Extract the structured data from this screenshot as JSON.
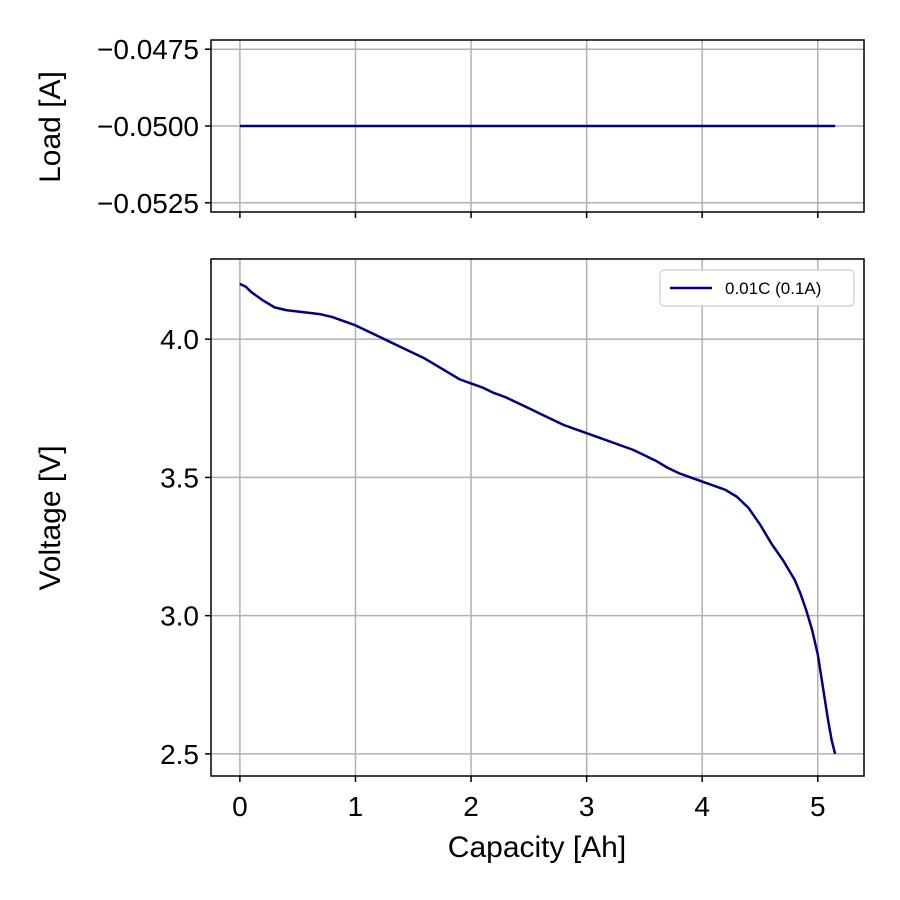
{
  "chart_data": [
    {
      "type": "line",
      "ylabel": "Load [A]",
      "xlim": [
        -0.25,
        5.4
      ],
      "ylim": [
        -0.0528,
        -0.0472
      ],
      "xticks": [
        0,
        1,
        2,
        3,
        4,
        5
      ],
      "yticks": [
        -0.0475,
        -0.05,
        -0.0525
      ],
      "ytick_labels": [
        "−0.0475",
        "−0.0500",
        "−0.0525"
      ],
      "grid": true,
      "series": [
        {
          "color": "#000080",
          "x": [
            0,
            5.15
          ],
          "y": [
            -0.05,
            -0.05
          ]
        }
      ]
    },
    {
      "type": "line",
      "xlabel": "Capacity [Ah]",
      "ylabel": "Voltage [V]",
      "xlim": [
        -0.25,
        5.4
      ],
      "ylim": [
        2.42,
        4.29
      ],
      "xticks": [
        0,
        1,
        2,
        3,
        4,
        5
      ],
      "xtick_labels": [
        "0",
        "1",
        "2",
        "3",
        "4",
        "5"
      ],
      "yticks": [
        2.5,
        3.0,
        3.5,
        4.0
      ],
      "ytick_labels": [
        "2.5",
        "3.0",
        "3.5",
        "4.0"
      ],
      "grid": true,
      "legend_position": "top-right",
      "series": [
        {
          "name": "0.01C (0.1A)",
          "color": "#000080",
          "x": [
            0,
            0.05,
            0.1,
            0.2,
            0.3,
            0.4,
            0.5,
            0.6,
            0.7,
            0.8,
            0.9,
            1.0,
            1.1,
            1.2,
            1.3,
            1.4,
            1.5,
            1.6,
            1.7,
            1.8,
            1.9,
            2.0,
            2.1,
            2.2,
            2.3,
            2.4,
            2.5,
            2.6,
            2.7,
            2.8,
            2.9,
            3.0,
            3.1,
            3.2,
            3.3,
            3.4,
            3.5,
            3.6,
            3.7,
            3.8,
            3.9,
            4.0,
            4.1,
            4.2,
            4.3,
            4.4,
            4.5,
            4.6,
            4.7,
            4.8,
            4.85,
            4.9,
            4.95,
            5.0,
            5.03,
            5.06,
            5.09,
            5.12,
            5.15
          ],
          "y": [
            4.2,
            4.19,
            4.17,
            4.14,
            4.115,
            4.105,
            4.1,
            4.095,
            4.09,
            4.08,
            4.065,
            4.05,
            4.03,
            4.01,
            3.99,
            3.97,
            3.95,
            3.93,
            3.905,
            3.88,
            3.855,
            3.84,
            3.825,
            3.805,
            3.79,
            3.77,
            3.75,
            3.73,
            3.71,
            3.69,
            3.675,
            3.66,
            3.645,
            3.63,
            3.615,
            3.6,
            3.58,
            3.56,
            3.535,
            3.515,
            3.5,
            3.485,
            3.47,
            3.455,
            3.43,
            3.39,
            3.33,
            3.26,
            3.2,
            3.13,
            3.08,
            3.02,
            2.95,
            2.86,
            2.78,
            2.7,
            2.62,
            2.55,
            2.5
          ]
        }
      ]
    }
  ]
}
